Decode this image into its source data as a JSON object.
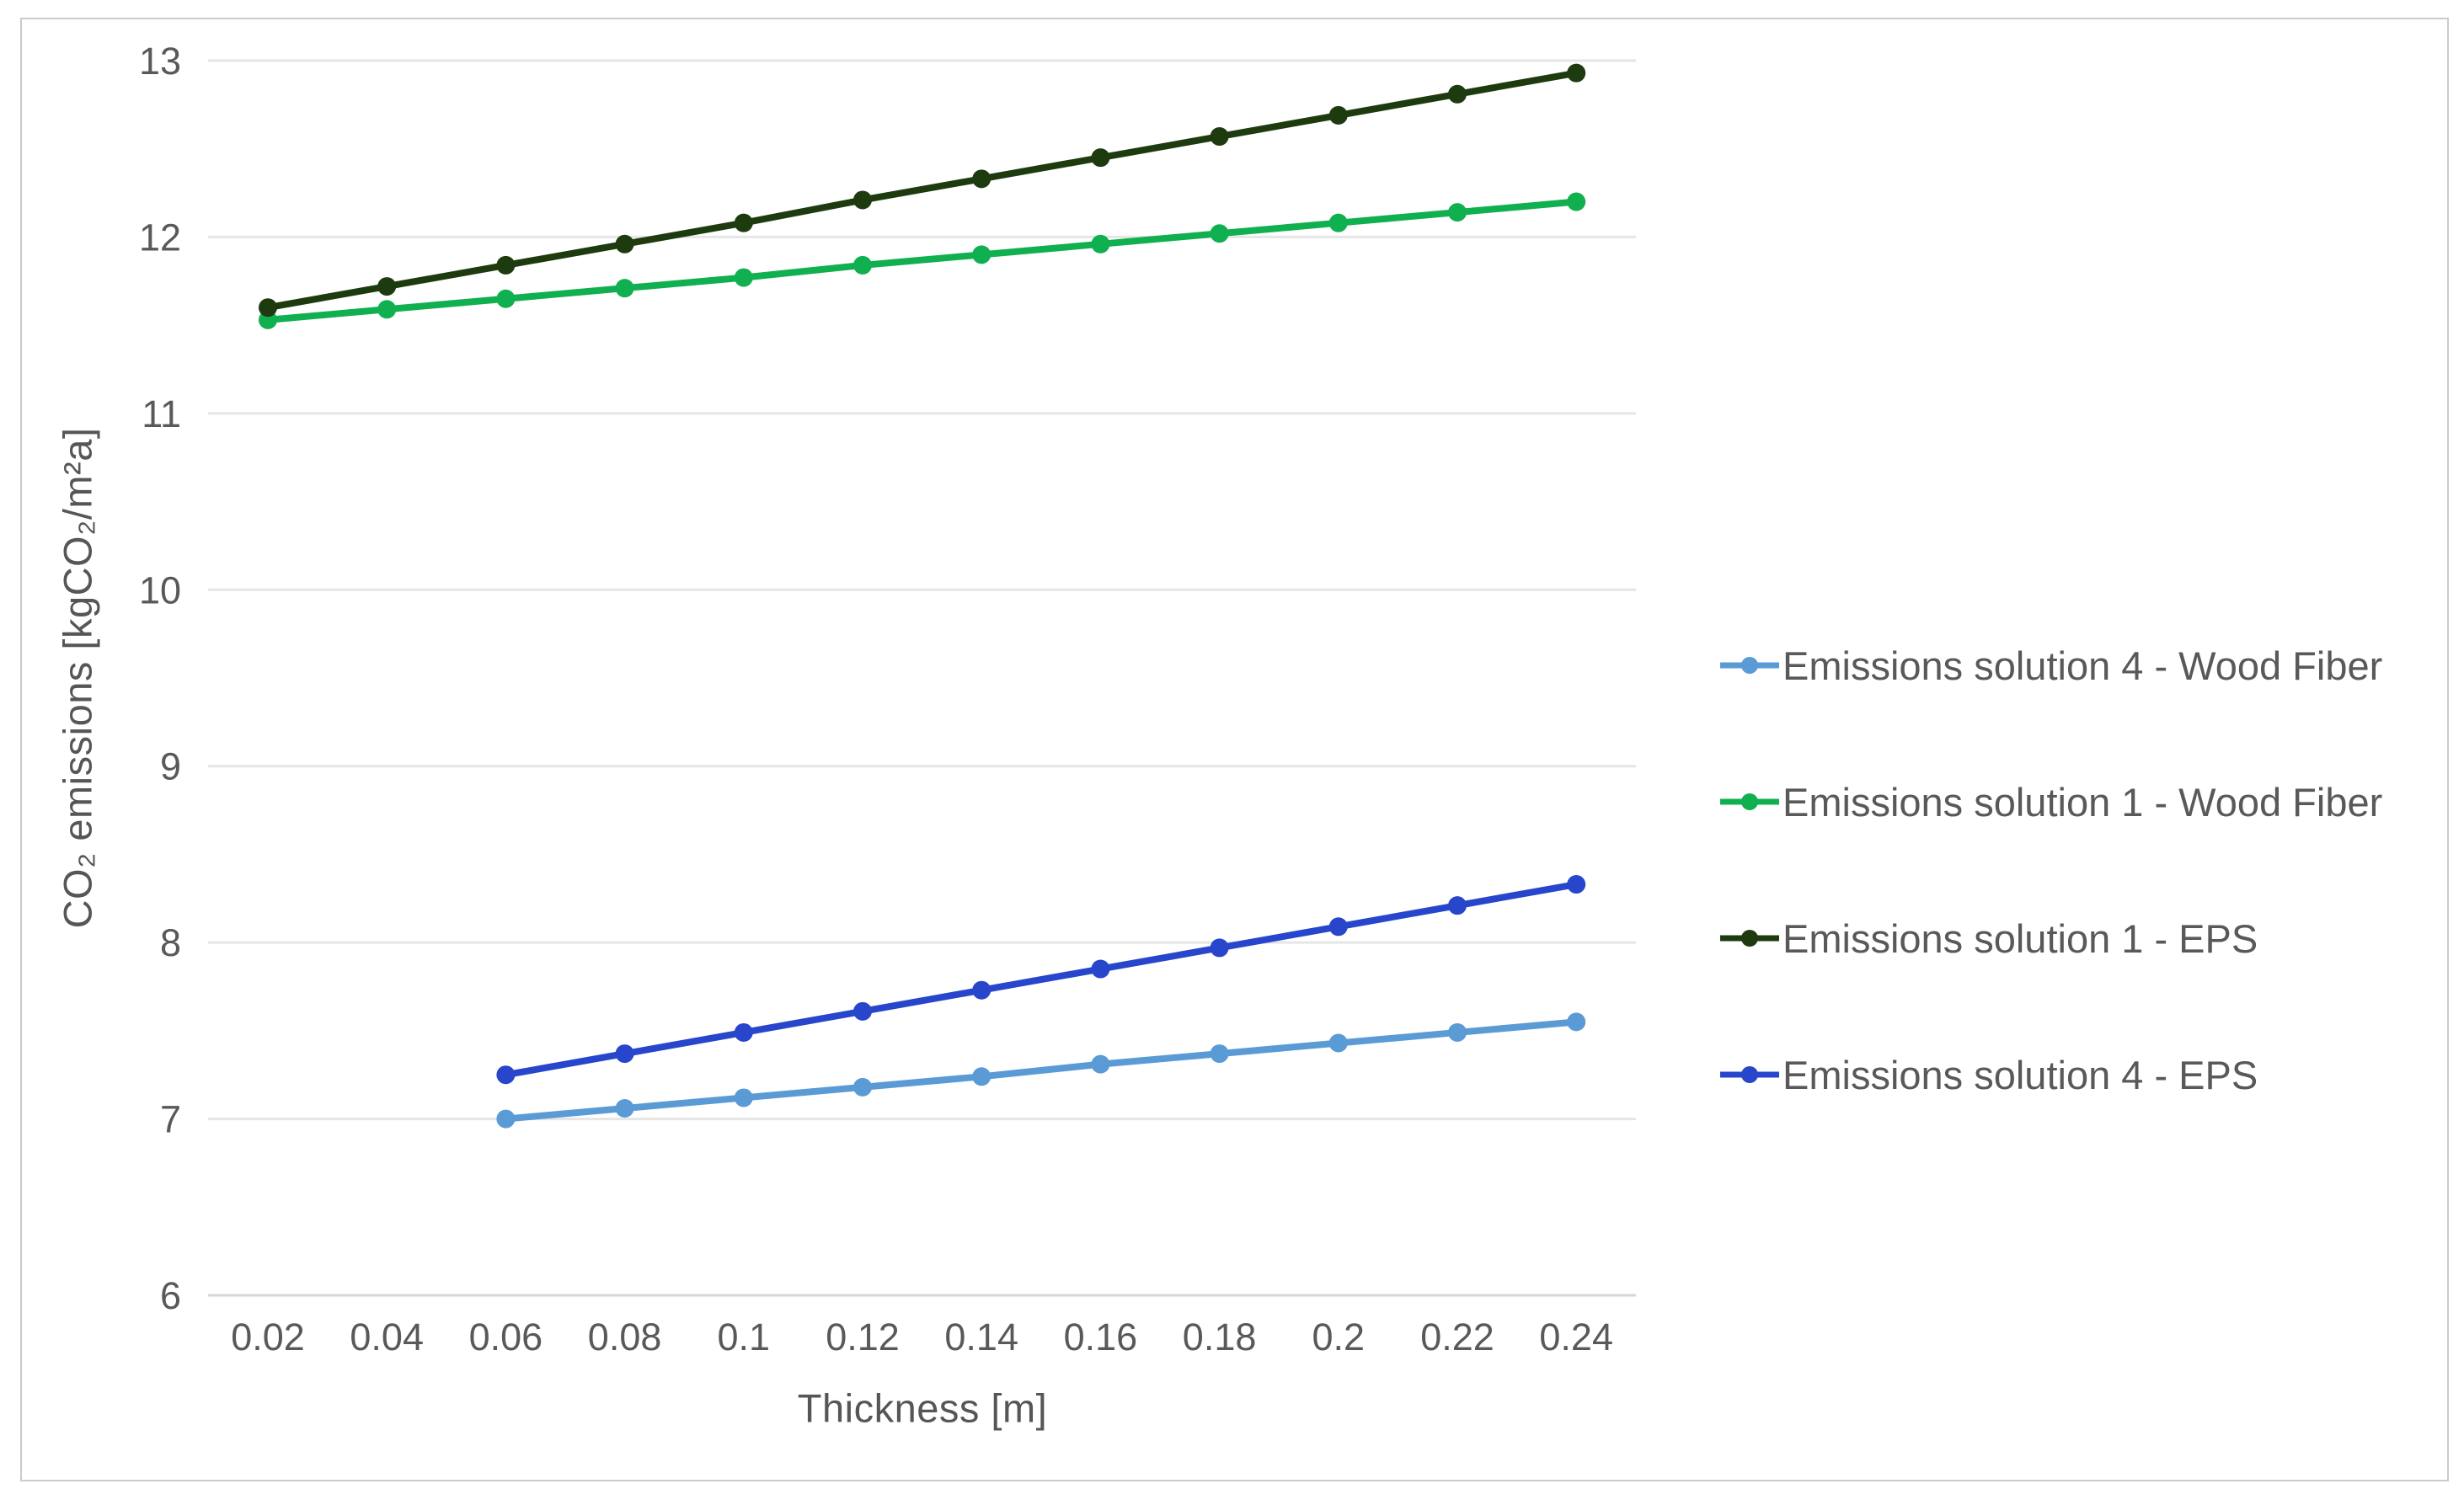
{
  "figure": {
    "background": "#ffffff",
    "border_color": "#cbcbcb"
  },
  "style": {
    "gridline_color": "#e6e6e6",
    "axis_line_color": "#d6d6d6",
    "tick_label_color": "#595959",
    "axis_title_color": "#565656"
  },
  "chart_data": {
    "type": "line",
    "title": "",
    "xlabel": "Thickness [m]",
    "ylabel": "CO₂ emissions [kgCO₂/m²a]",
    "x_values": [
      0.02,
      0.04,
      0.06,
      0.08,
      0.1,
      0.12,
      0.14,
      0.16,
      0.18,
      0.2,
      0.22,
      0.24
    ],
    "x_tick_labels": [
      "0.02",
      "0.04",
      "0.06",
      "0.08",
      "0.1",
      "0.12",
      "0.14",
      "0.16",
      "0.18",
      "0.2",
      "0.22",
      "0.24"
    ],
    "y_ticks": [
      6,
      7,
      8,
      9,
      10,
      11,
      12,
      13
    ],
    "ylim": [
      6,
      13
    ],
    "grid": true,
    "legend_position": "right-center",
    "marker": "circle",
    "series": [
      {
        "name": "Emissions solution 4 - Wood Fiber",
        "color": "#5b9bd5",
        "start_x": 0.06,
        "values": [
          7.0,
          7.06,
          7.12,
          7.18,
          7.24,
          7.31,
          7.37,
          7.43,
          7.49,
          7.55
        ]
      },
      {
        "name": "Emissions solution 1 - Wood Fiber",
        "color": "#10b050",
        "start_x": 0.02,
        "values": [
          11.53,
          11.59,
          11.65,
          11.71,
          11.77,
          11.84,
          11.9,
          11.96,
          12.02,
          12.08,
          12.14,
          12.2
        ]
      },
      {
        "name": "Emissions solution 1 - EPS",
        "color": "#1e3b10",
        "start_x": 0.02,
        "values": [
          11.6,
          11.72,
          11.84,
          11.96,
          12.08,
          12.21,
          12.33,
          12.45,
          12.57,
          12.69,
          12.81,
          12.93
        ]
      },
      {
        "name": "Emissions solution 4 - EPS",
        "color": "#2746cb",
        "start_x": 0.06,
        "values": [
          7.25,
          7.37,
          7.49,
          7.61,
          7.73,
          7.85,
          7.97,
          8.09,
          8.21,
          8.33
        ]
      }
    ]
  }
}
